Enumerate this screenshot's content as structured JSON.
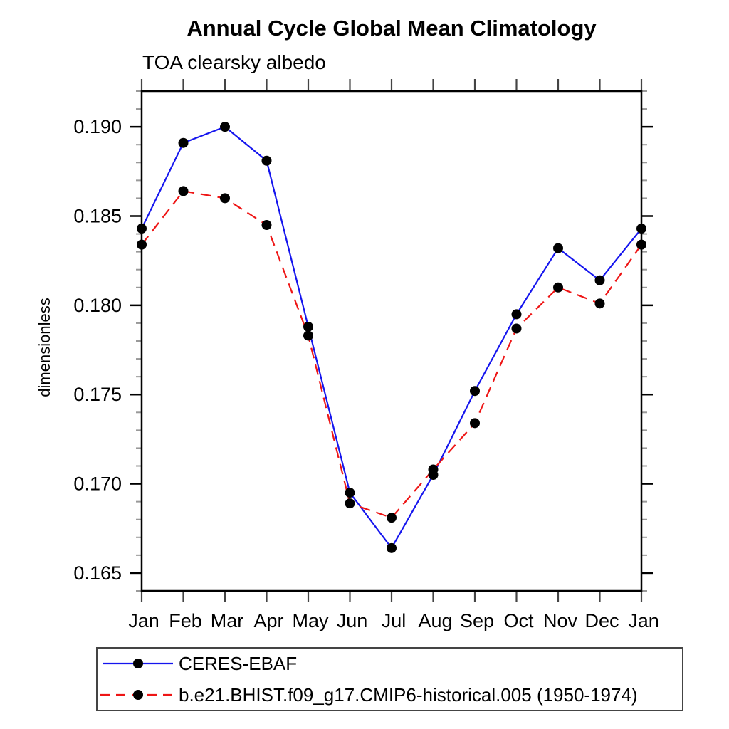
{
  "page_title": "Annual Cycle Global Mean Climatology",
  "chart_data": {
    "type": "line",
    "title": "Annual Cycle Global Mean Climatology",
    "subtitle": "TOA clearsky albedo",
    "ylabel": "dimensionless",
    "xlabel": "",
    "x_tick_labels": [
      "Jan",
      "Feb",
      "Mar",
      "Apr",
      "May",
      "Jun",
      "Jul",
      "Aug",
      "Sep",
      "Oct",
      "Nov",
      "Dec",
      "Jan"
    ],
    "y_tick_values": [
      0.165,
      0.17,
      0.175,
      0.18,
      0.185,
      0.19
    ],
    "y_tick_labels": [
      "0.165",
      "0.170",
      "0.175",
      "0.180",
      "0.185",
      "0.190"
    ],
    "y_minor_step": 0.001,
    "ylim": [
      0.164,
      0.192
    ],
    "grid": false,
    "legend_position": "bottom-left-box",
    "axis_color": "#000000",
    "minor_tick_color": "#999999",
    "month_tick_color": "#444444",
    "marker_color": "#000000",
    "series": [
      {
        "name": "CERES-EBAF",
        "color": "#1515ee",
        "style": "solid",
        "marker": "filled-circle",
        "values": [
          0.1843,
          0.1891,
          0.19,
          0.1881,
          0.1788,
          0.1695,
          0.1664,
          0.1705,
          0.1752,
          0.1795,
          0.1832,
          0.1814,
          0.1843
        ]
      },
      {
        "name": "b.e21.BHIST.f09_g17.CMIP6-historical.005 (1950-1974)",
        "color": "#ee1515",
        "style": "dashed",
        "marker": "filled-circle",
        "values": [
          0.1834,
          0.1864,
          0.186,
          0.1845,
          0.1783,
          0.1689,
          0.1681,
          0.1708,
          0.1734,
          0.1787,
          0.181,
          0.1801,
          0.1834
        ]
      }
    ]
  }
}
